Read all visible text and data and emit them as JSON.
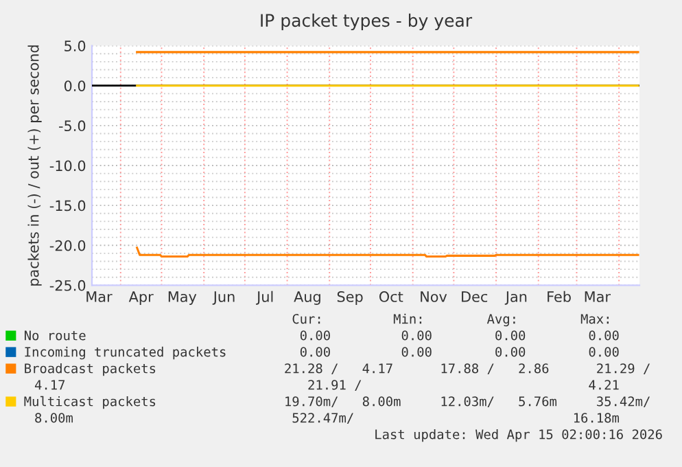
{
  "chart_data": {
    "type": "line",
    "title": "IP packet types - by year",
    "ylabel": "packets in (-) / out (+) per second",
    "xlim": [
      "2025-03-11",
      "2026-04-16"
    ],
    "xticks": [
      {
        "value": "2025-03-16",
        "label": "Mar"
      },
      {
        "value": "2025-04-01",
        "label": null
      },
      {
        "value": "2025-04-16",
        "label": "Apr"
      },
      {
        "value": "2025-05-01",
        "label": null
      },
      {
        "value": "2025-05-16",
        "label": "May"
      },
      {
        "value": "2025-06-01",
        "label": null
      },
      {
        "value": "2025-06-16",
        "label": "Jun"
      },
      {
        "value": "2025-07-01",
        "label": null
      },
      {
        "value": "2025-07-16",
        "label": "Jul"
      },
      {
        "value": "2025-08-01",
        "label": null
      },
      {
        "value": "2025-08-16",
        "label": "Aug"
      },
      {
        "value": "2025-09-01",
        "label": null
      },
      {
        "value": "2025-09-16",
        "label": "Sep"
      },
      {
        "value": "2025-10-01",
        "label": null
      },
      {
        "value": "2025-10-16",
        "label": "Oct"
      },
      {
        "value": "2025-11-01",
        "label": null
      },
      {
        "value": "2025-11-16",
        "label": "Nov"
      },
      {
        "value": "2025-12-01",
        "label": null
      },
      {
        "value": "2025-12-16",
        "label": "Dec"
      },
      {
        "value": "2026-01-01",
        "label": null
      },
      {
        "value": "2026-01-16",
        "label": "Jan"
      },
      {
        "value": "2026-02-01",
        "label": null
      },
      {
        "value": "2026-02-16",
        "label": "Feb"
      },
      {
        "value": "2026-03-01",
        "label": null
      },
      {
        "value": "2026-03-16",
        "label": "Mar"
      },
      {
        "value": "2026-04-01",
        "label": null
      }
    ],
    "ylim": [
      -25,
      5
    ],
    "yticks": [
      {
        "value": -25,
        "label": "-25.0"
      },
      {
        "value": -24,
        "label": null
      },
      {
        "value": -23,
        "label": null
      },
      {
        "value": -22,
        "label": null
      },
      {
        "value": -21,
        "label": null
      },
      {
        "value": -20,
        "label": "-20.0"
      },
      {
        "value": -19,
        "label": null
      },
      {
        "value": -18,
        "label": null
      },
      {
        "value": -17,
        "label": null
      },
      {
        "value": -16,
        "label": null
      },
      {
        "value": -15,
        "label": "-15.0"
      },
      {
        "value": -14,
        "label": null
      },
      {
        "value": -13,
        "label": null
      },
      {
        "value": -12,
        "label": null
      },
      {
        "value": -11,
        "label": null
      },
      {
        "value": -10,
        "label": "-10.0"
      },
      {
        "value": -9,
        "label": null
      },
      {
        "value": -8,
        "label": null
      },
      {
        "value": -7,
        "label": null
      },
      {
        "value": -6,
        "label": null
      },
      {
        "value": -5,
        "label": "-5.0"
      },
      {
        "value": -4,
        "label": null
      },
      {
        "value": -3,
        "label": null
      },
      {
        "value": -2,
        "label": null
      },
      {
        "value": -1,
        "label": null
      },
      {
        "value": 0,
        "label": "0.0"
      },
      {
        "value": 1,
        "label": null
      },
      {
        "value": 2,
        "label": null
      },
      {
        "value": 3,
        "label": null
      },
      {
        "value": 4,
        "label": null
      },
      {
        "value": 5,
        "label": "5.0"
      }
    ],
    "grid": true,
    "legend": "bottom",
    "ref_lines": [
      {
        "axis": "y",
        "value": 0,
        "label": null,
        "color": "#000000"
      }
    ],
    "series": [
      {
        "name": "No route",
        "color": "#00cc00"
      },
      {
        "name": "Incoming truncated packets",
        "color": "#0066b3"
      },
      {
        "name": "Broadcast packets",
        "color": "#ff8000",
        "x": [
          "2025-04-13",
          "2025-07-01",
          "2025-10-01",
          "2026-01-01",
          "2026-04-15"
        ],
        "values": [
          4.2,
          4.2,
          4.2,
          4.2,
          4.2
        ]
      },
      {
        "color": "#ff8000",
        "x": [
          "2025-04-13",
          "2025-04-15",
          "2025-04-30",
          "2025-05-01",
          "2025-05-20",
          "2025-05-21",
          "2025-08-01",
          "2025-11-10",
          "2025-11-11",
          "2025-11-25",
          "2025-11-26",
          "2025-12-31",
          "2026-01-01",
          "2026-04-15"
        ],
        "values": [
          -20.3,
          -21.2,
          -21.2,
          -21.4,
          -21.4,
          -21.2,
          -21.2,
          -21.2,
          -21.4,
          -21.4,
          -21.3,
          -21.3,
          -21.2,
          -21.2
        ]
      },
      {
        "name": "Multicast packets",
        "color": "#ffcc00",
        "x": [
          "2025-04-13",
          "2026-04-15"
        ],
        "values": [
          0,
          0
        ]
      }
    ],
    "annotations": [
      "                                 Cur:         Min:        Avg:        Max:",
      "                                  0.00         0.00        0.00        0.00",
      "                                  0.00         0.00        0.00        0.00",
      "                                21.28 /   4.17      17.88 /   2.86      21.29 /",
      "4.17                               21.91 /                             4.21",
      "                                19.70m/   8.00m     12.03m/   5.76m     35.42m/",
      "8.00m                            522.47m/                            16.18m",
      "Last update: Wed Apr 15 02:00:16 2026"
    ]
  }
}
